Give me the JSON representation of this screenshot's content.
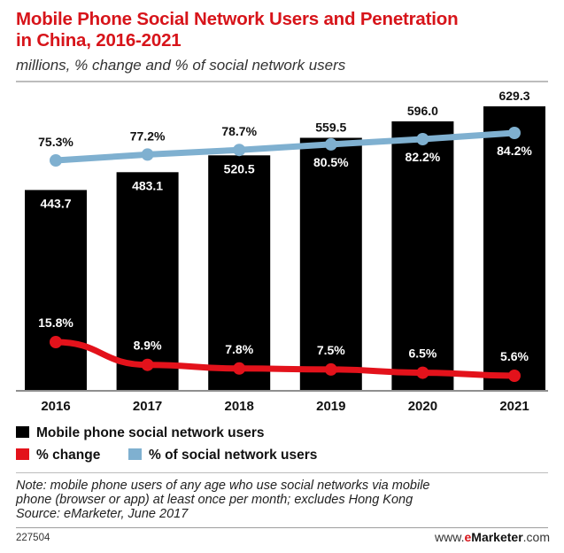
{
  "header": {
    "title_line1": "Mobile Phone Social Network Users and Penetration",
    "title_line2": "in China, 2016-2021",
    "subtitle": "millions, % change and % of social network users"
  },
  "colors": {
    "title": "#d7141a",
    "bar": "#000000",
    "change_line": "#e3121b",
    "share_line": "#7fb0d0"
  },
  "chart_data": {
    "type": "bar",
    "categories": [
      "2016",
      "2017",
      "2018",
      "2019",
      "2020",
      "2021"
    ],
    "series": [
      {
        "name": "Mobile phone social network users",
        "type": "bar",
        "values": [
          443.7,
          483.1,
          520.5,
          559.5,
          596.0,
          629.3
        ],
        "labels": [
          "443.7",
          "483.1",
          "520.5",
          "559.5",
          "596.0",
          "629.3"
        ]
      },
      {
        "name": "% of social network users",
        "type": "line",
        "values": [
          75.3,
          77.2,
          78.7,
          80.5,
          82.2,
          84.2
        ],
        "labels": [
          "75.3%",
          "77.2%",
          "78.7%",
          "80.5%",
          "82.2%",
          "84.2%"
        ]
      },
      {
        "name": "% change",
        "type": "line",
        "values": [
          15.8,
          8.9,
          7.8,
          7.5,
          6.5,
          5.6
        ],
        "labels": [
          "15.8%",
          "8.9%",
          "7.8%",
          "7.5%",
          "6.5%",
          "5.6%"
        ]
      }
    ],
    "grid": false,
    "legend": "bottom-left"
  },
  "legend": {
    "bars_label": "Mobile phone social network users",
    "change_label": "% change",
    "share_label": "% of social network users"
  },
  "note": {
    "line1": "Note: mobile phone users of any age who use social networks via mobile",
    "line2": "phone (browser or app) at least once per month; excludes Hong Kong",
    "line3": "Source: eMarketer, June 2017"
  },
  "footer": {
    "id": "227504",
    "brand_prefix": "www.",
    "brand_e": "e",
    "brand_name": "Marketer",
    "brand_suffix": ".com"
  }
}
